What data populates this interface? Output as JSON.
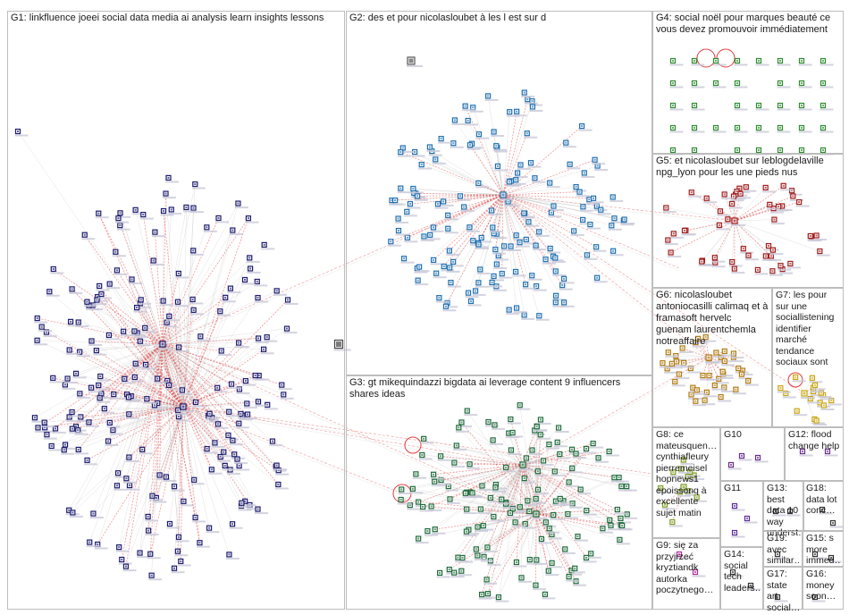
{
  "groups": [
    {
      "id": "G1",
      "label": "G1: linkfluence joeei social data media ai analysis learn insights lessons",
      "color": "#1a1a6e"
    },
    {
      "id": "G2",
      "label": "G2: des et pour nicolasloubet à les l est sur d",
      "color": "#1f6fb0"
    },
    {
      "id": "G3",
      "label": "G3: gt mikequindazzi bigdata ai leverage content 9 influencers shares ideas",
      "color": "#1e6b3a"
    },
    {
      "id": "G4",
      "label": "G4: social noël pour marques beauté ce vous devez promouvoir immédiatement",
      "color": "#2e8b2e"
    },
    {
      "id": "G5",
      "label": "G5: et nicolasloubet sur leblogdelaville npg_lyon pour les une pieds nus",
      "color": "#a01c1c"
    },
    {
      "id": "G6",
      "label": "G6: nicolasloubet antoniocasilli calimaq et à framasoft hervelc guenam laurentchemla notreaffaire",
      "color": "#b07a10"
    },
    {
      "id": "G7",
      "label": "G7: les pour sur une sociallistening identifier marché tendance sociaux sont",
      "color": "#c9a40c"
    },
    {
      "id": "G8",
      "label": "G8: ce mateusquen… cynthiafleury pierremeisel hopnews1 epoissonq à excellente sujet matin",
      "color": "#7a9a1c"
    },
    {
      "id": "G9",
      "label": "G9: się za przyjrzeć kryztiandk autorka poczytnego…",
      "color": "#b2289a"
    },
    {
      "id": "G10",
      "label": "G10",
      "color": "#6a2b8a"
    },
    {
      "id": "G11",
      "label": "G11",
      "color": "#5a2b9a"
    },
    {
      "id": "G12",
      "label": "G12: flood change help",
      "color": "#6a2b8a"
    },
    {
      "id": "G13",
      "label": "G13: best data 10 way underst…",
      "color": "#333333"
    },
    {
      "id": "G14",
      "label": "G14: social tech leaders…",
      "color": "#333333"
    },
    {
      "id": "G15",
      "label": "G15: s more immed…",
      "color": "#333333"
    },
    {
      "id": "G16",
      "label": "G16: money soon…",
      "color": "#333333"
    },
    {
      "id": "G17",
      "label": "G17: state art social…",
      "color": "#333333"
    },
    {
      "id": "G18",
      "label": "G18: data lot conc…",
      "color": "#333333"
    },
    {
      "id": "G19",
      "label": "G19: avec similar…",
      "color": "#333333"
    }
  ],
  "colors": {
    "edge_red": "#e23b3b",
    "edge_gray": "#b9b9b9",
    "box_border": "#bdbdbd",
    "node_shadow": "#c8c8d8"
  },
  "icons": [
    "user-node-icon",
    "profile-photo-icon"
  ]
}
